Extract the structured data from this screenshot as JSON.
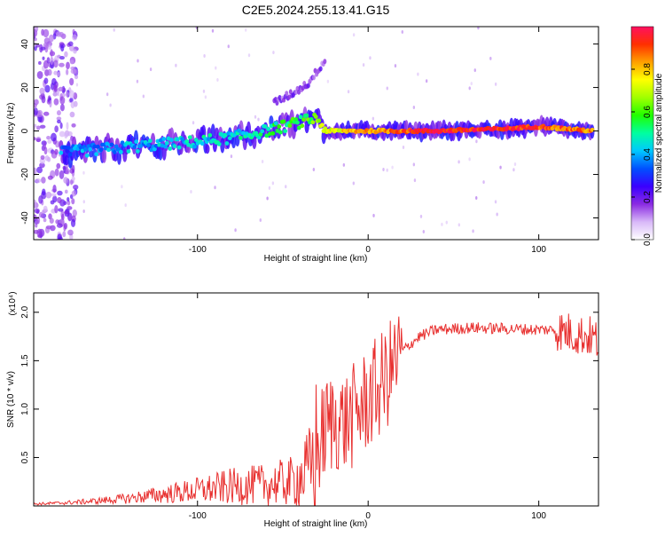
{
  "title": "C2E5.2024.255.13.41.G15",
  "chart_data": [
    {
      "type": "heatmap",
      "xlabel": "Height of straight line (km)",
      "ylabel": "Frequency (Hz)",
      "xlim": [
        -196,
        135
      ],
      "ylim": [
        -50,
        48
      ],
      "x_ticks": [
        -100,
        0,
        100
      ],
      "y_ticks": [
        -40,
        -20,
        0,
        20,
        40
      ],
      "colorbar": {
        "label": "Normalized spectral amplitude",
        "range": [
          0,
          1
        ],
        "ticks": [
          "0.0",
          "0.2",
          "0.4",
          "0.6",
          "0.8"
        ],
        "colors": [
          "#ffffff",
          "#d8b8f8",
          "#8a2be2",
          "#3a00ff",
          "#0050ff",
          "#00c8ff",
          "#00ffa0",
          "#20ff00",
          "#a0ff00",
          "#ffff00",
          "#ffa000",
          "#ff3000",
          "#ff1060"
        ]
      },
      "ridge": {
        "x": [
          -180,
          -150,
          -120,
          -100,
          -80,
          -60,
          -45,
          -30,
          -25,
          0,
          40,
          80,
          100,
          132
        ],
        "frequency": [
          -10,
          -8,
          -6,
          -5,
          -3,
          0,
          3,
          6,
          0,
          0,
          0,
          1,
          2,
          0
        ],
        "amplitude": [
          0.35,
          0.4,
          0.4,
          0.45,
          0.45,
          0.5,
          0.55,
          0.6,
          0.7,
          0.85,
          0.95,
          0.95,
          0.9,
          0.85
        ]
      },
      "branch": {
        "x": [
          -55,
          -45,
          -35,
          -25
        ],
        "frequency": [
          13,
          17,
          22,
          33
        ]
      }
    },
    {
      "type": "line",
      "xlabel": "Height of straight line (km)",
      "ylabel": "SNR (10 * v/v)",
      "multiplier": "(x10⁴)",
      "xlim": [
        -196,
        135
      ],
      "ylim": [
        0,
        2.2
      ],
      "x_ticks": [
        -100,
        0,
        100
      ],
      "y_ticks": [
        "0.5",
        "1.0",
        "1.5",
        "2.0"
      ],
      "color": "#e8302f",
      "series": [
        {
          "x": [
            -196,
            -180,
            -160,
            -140,
            -120,
            -100,
            -80,
            -60,
            -45,
            -35,
            -30,
            -25,
            -20,
            -15,
            -10,
            -5,
            0,
            10,
            20,
            30,
            40,
            60,
            80,
            100,
            110,
            120,
            130,
            135
          ],
          "y": [
            0.02,
            0.03,
            0.05,
            0.08,
            0.12,
            0.16,
            0.2,
            0.22,
            0.25,
            0.35,
            0.55,
            0.8,
            0.9,
            0.85,
            0.9,
            1.0,
            1.1,
            1.3,
            1.6,
            1.75,
            1.82,
            1.84,
            1.83,
            1.82,
            1.82,
            1.78,
            1.75,
            1.7
          ]
        }
      ]
    }
  ]
}
